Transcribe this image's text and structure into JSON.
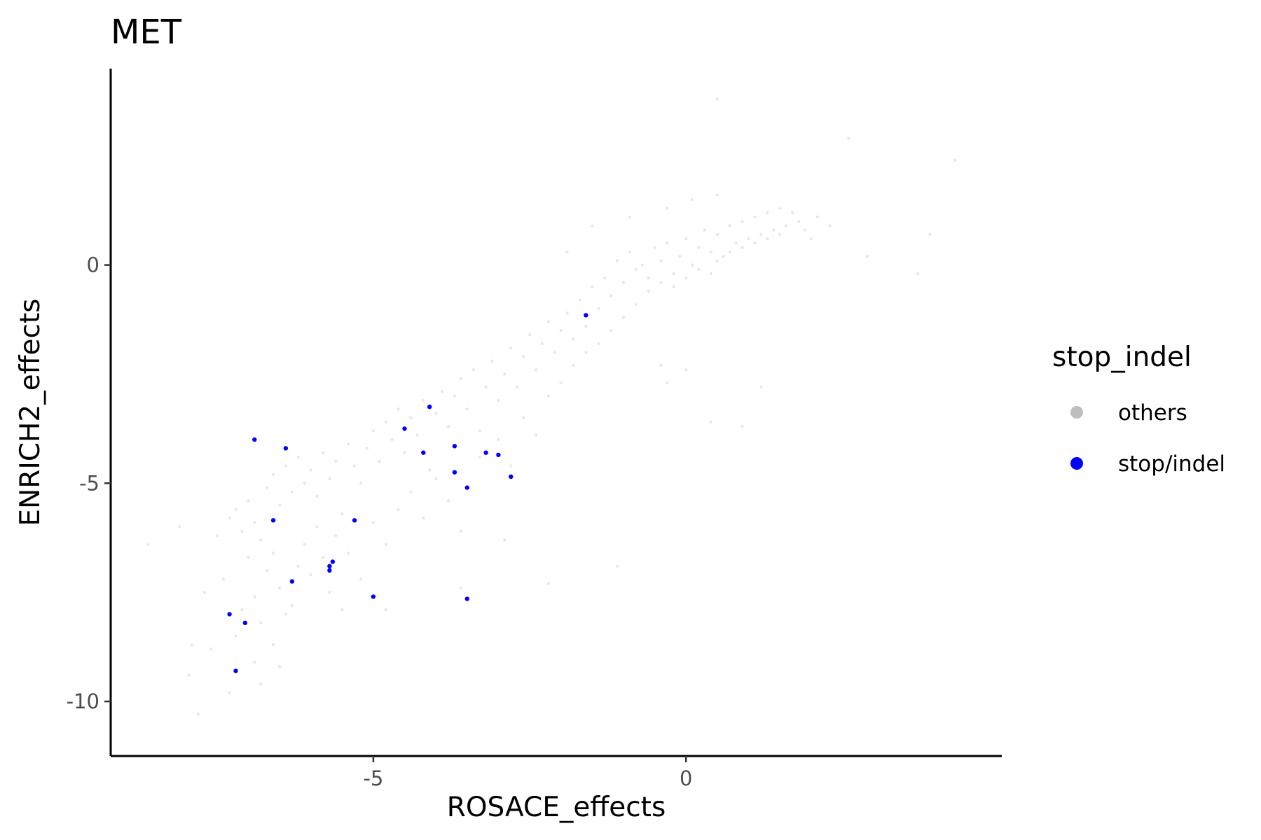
{
  "chart_data": {
    "type": "scatter",
    "title": "MET",
    "xlabel": "ROSACE_effects",
    "ylabel": "ENRICH2_effects",
    "xlim": [
      -9.2,
      5.05
    ],
    "ylim": [
      -11.25,
      4.5
    ],
    "x_ticks": [
      {
        "value": -5,
        "label": "-5"
      },
      {
        "value": 0,
        "label": "0"
      }
    ],
    "y_ticks": [
      {
        "value": 0,
        "label": "0"
      },
      {
        "value": -5,
        "label": "-5"
      },
      {
        "value": -10,
        "label": "-10"
      }
    ],
    "grid": false,
    "legend": {
      "title": "stop_indel",
      "position": "right",
      "entries": [
        {
          "label": "others",
          "color": "#bebebe"
        },
        {
          "label": "stop/indel",
          "color": "#0000ff"
        }
      ]
    },
    "series": [
      {
        "name": "others",
        "color": "#bebebe",
        "opacity": 0.35,
        "points": [
          [
            -8.6,
            -6.4
          ],
          [
            -8.1,
            -6.0
          ],
          [
            -7.95,
            -9.4
          ],
          [
            -7.8,
            -10.3
          ],
          [
            -7.7,
            -7.5
          ],
          [
            -7.6,
            -8.8
          ],
          [
            -7.5,
            -6.2
          ],
          [
            -7.4,
            -7.2
          ],
          [
            -7.3,
            -9.8
          ],
          [
            -7.2,
            -8.5
          ],
          [
            -7.1,
            -7.9
          ],
          [
            -7.0,
            -6.7
          ],
          [
            -7.3,
            -5.8
          ],
          [
            -7.2,
            -5.6
          ],
          [
            -7.1,
            -6.1
          ],
          [
            -7.0,
            -5.4
          ],
          [
            -6.9,
            -5.9
          ],
          [
            -6.8,
            -6.3
          ],
          [
            -6.9,
            -7.6
          ],
          [
            -6.8,
            -8.2
          ],
          [
            -6.7,
            -7.0
          ],
          [
            -6.6,
            -6.6
          ],
          [
            -6.5,
            -7.4
          ],
          [
            -6.4,
            -8.0
          ],
          [
            -6.9,
            -9.1
          ],
          [
            -6.8,
            -9.6
          ],
          [
            -6.6,
            -8.7
          ],
          [
            -6.5,
            -9.2
          ],
          [
            -6.3,
            -7.8
          ],
          [
            -6.2,
            -6.9
          ],
          [
            -6.7,
            -5.1
          ],
          [
            -6.6,
            -4.8
          ],
          [
            -6.5,
            -5.5
          ],
          [
            -6.4,
            -4.6
          ],
          [
            -6.3,
            -5.2
          ],
          [
            -6.2,
            -4.4
          ],
          [
            -6.1,
            -5.0
          ],
          [
            -6.0,
            -4.7
          ],
          [
            -5.9,
            -5.3
          ],
          [
            -5.8,
            -4.3
          ],
          [
            -5.7,
            -4.9
          ],
          [
            -5.6,
            -4.5
          ],
          [
            -6.1,
            -6.4
          ],
          [
            -6.0,
            -7.1
          ],
          [
            -5.9,
            -6.0
          ],
          [
            -5.8,
            -6.7
          ],
          [
            -5.7,
            -7.5
          ],
          [
            -5.6,
            -6.2
          ],
          [
            -5.5,
            -5.7
          ],
          [
            -5.4,
            -4.1
          ],
          [
            -5.3,
            -4.6
          ],
          [
            -5.2,
            -5.0
          ],
          [
            -5.1,
            -4.2
          ],
          [
            -5.0,
            -3.8
          ],
          [
            -4.9,
            -4.5
          ],
          [
            -4.8,
            -3.6
          ],
          [
            -4.7,
            -4.0
          ],
          [
            -4.6,
            -3.3
          ],
          [
            -4.5,
            -4.3
          ],
          [
            -4.4,
            -3.5
          ],
          [
            -5.5,
            -7.9
          ],
          [
            -5.4,
            -6.6
          ],
          [
            -5.2,
            -7.2
          ],
          [
            -5.0,
            -5.9
          ],
          [
            -4.8,
            -6.4
          ],
          [
            -4.6,
            -5.6
          ],
          [
            -4.3,
            -3.9
          ],
          [
            -4.2,
            -3.1
          ],
          [
            -4.1,
            -4.7
          ],
          [
            -4.0,
            -3.4
          ],
          [
            -3.9,
            -2.9
          ],
          [
            -3.8,
            -3.7
          ],
          [
            -3.7,
            -3.0
          ],
          [
            -3.6,
            -2.6
          ],
          [
            -3.5,
            -3.3
          ],
          [
            -3.4,
            -2.4
          ],
          [
            -3.3,
            -3.8
          ],
          [
            -3.2,
            -2.8
          ],
          [
            -4.4,
            -5.2
          ],
          [
            -4.2,
            -5.8
          ],
          [
            -4.0,
            -4.9
          ],
          [
            -3.8,
            -5.4
          ],
          [
            -3.6,
            -6.1
          ],
          [
            -3.3,
            -4.4
          ],
          [
            -3.1,
            -2.2
          ],
          [
            -3.0,
            -3.1
          ],
          [
            -2.9,
            -2.5
          ],
          [
            -2.8,
            -1.9
          ],
          [
            -2.7,
            -2.8
          ],
          [
            -2.6,
            -2.1
          ],
          [
            -2.5,
            -1.6
          ],
          [
            -2.4,
            -2.4
          ],
          [
            -2.3,
            -1.8
          ],
          [
            -2.2,
            -1.3
          ],
          [
            -2.1,
            -2.0
          ],
          [
            -2.0,
            -1.5
          ],
          [
            -3.0,
            -4.0
          ],
          [
            -2.8,
            -4.6
          ],
          [
            -2.6,
            -3.5
          ],
          [
            -2.4,
            -3.9
          ],
          [
            -2.2,
            -3.0
          ],
          [
            -2.0,
            -2.7
          ],
          [
            -1.9,
            -1.1
          ],
          [
            -1.8,
            -1.7
          ],
          [
            -1.7,
            -0.8
          ],
          [
            -1.6,
            -1.4
          ],
          [
            -1.5,
            -0.5
          ],
          [
            -1.4,
            -1.0
          ],
          [
            -1.3,
            -0.3
          ],
          [
            -1.2,
            -0.7
          ],
          [
            -1.1,
            0.1
          ],
          [
            -1.0,
            -0.4
          ],
          [
            -0.9,
            0.3
          ],
          [
            -0.8,
            -0.1
          ],
          [
            -1.8,
            -2.3
          ],
          [
            -1.6,
            -2.0
          ],
          [
            -1.4,
            -1.8
          ],
          [
            -1.2,
            -1.5
          ],
          [
            -1.0,
            -1.2
          ],
          [
            -0.8,
            -0.9
          ],
          [
            -0.7,
            0.0
          ],
          [
            -0.6,
            -0.3
          ],
          [
            -0.5,
            0.4
          ],
          [
            -0.4,
            0.1
          ],
          [
            -0.3,
            0.5
          ],
          [
            -0.2,
            -0.2
          ],
          [
            -0.1,
            0.2
          ],
          [
            0.0,
            0.6
          ],
          [
            0.1,
            0.0
          ],
          [
            0.2,
            0.4
          ],
          [
            0.3,
            0.8
          ],
          [
            0.4,
            0.3
          ],
          [
            -0.6,
            -0.6
          ],
          [
            -0.4,
            -0.4
          ],
          [
            -0.2,
            -0.5
          ],
          [
            0.0,
            -0.3
          ],
          [
            0.2,
            -0.1
          ],
          [
            0.4,
            -0.2
          ],
          [
            0.5,
            0.7
          ],
          [
            0.6,
            0.2
          ],
          [
            0.7,
            0.9
          ],
          [
            0.8,
            0.5
          ],
          [
            0.9,
            1.0
          ],
          [
            1.0,
            0.6
          ],
          [
            1.1,
            1.1
          ],
          [
            1.2,
            0.7
          ],
          [
            1.3,
            1.2
          ],
          [
            1.4,
            0.8
          ],
          [
            1.5,
            1.3
          ],
          [
            1.6,
            0.9
          ],
          [
            0.5,
            0.1
          ],
          [
            0.7,
            0.3
          ],
          [
            0.9,
            0.4
          ],
          [
            1.1,
            0.5
          ],
          [
            1.3,
            0.6
          ],
          [
            1.5,
            0.7
          ],
          [
            1.7,
            1.2
          ],
          [
            1.8,
            1.0
          ],
          [
            1.9,
            0.8
          ],
          [
            2.0,
            0.6
          ],
          [
            2.1,
            1.1
          ],
          [
            2.3,
            0.9
          ],
          [
            -0.3,
            1.3
          ],
          [
            0.1,
            1.5
          ],
          [
            0.5,
            1.6
          ],
          [
            -0.9,
            1.1
          ],
          [
            -1.5,
            0.9
          ],
          [
            -1.9,
            0.3
          ],
          [
            0.5,
            3.8
          ],
          [
            2.6,
            2.9
          ],
          [
            4.3,
            2.4
          ],
          [
            3.9,
            0.7
          ],
          [
            3.7,
            -0.2
          ],
          [
            2.9,
            0.2
          ],
          [
            1.2,
            -2.8
          ],
          [
            0.9,
            -3.7
          ],
          [
            0.4,
            -3.6
          ],
          [
            0.0,
            -2.4
          ],
          [
            -0.4,
            -2.3
          ],
          [
            -0.3,
            -2.7
          ],
          [
            -1.1,
            -6.9
          ],
          [
            -2.2,
            -7.3
          ],
          [
            -2.9,
            -6.3
          ],
          [
            -3.6,
            -7.4
          ],
          [
            -4.8,
            -7.9
          ],
          [
            -7.9,
            -8.7
          ]
        ]
      },
      {
        "name": "stop/indel",
        "color": "#0000ff",
        "opacity": 1,
        "points": [
          [
            -1.6,
            -1.15
          ],
          [
            -4.1,
            -3.25
          ],
          [
            -4.5,
            -3.75
          ],
          [
            -3.7,
            -4.15
          ],
          [
            -4.2,
            -4.3
          ],
          [
            -3.2,
            -4.3
          ],
          [
            -3.0,
            -4.35
          ],
          [
            -3.7,
            -4.75
          ],
          [
            -2.8,
            -4.85
          ],
          [
            -3.5,
            -5.1
          ],
          [
            -6.9,
            -4.0
          ],
          [
            -6.4,
            -4.2
          ],
          [
            -6.6,
            -5.85
          ],
          [
            -5.3,
            -5.85
          ],
          [
            -5.65,
            -6.8
          ],
          [
            -5.7,
            -6.9
          ],
          [
            -5.7,
            -7.0
          ],
          [
            -6.3,
            -7.25
          ],
          [
            -5.0,
            -7.6
          ],
          [
            -3.5,
            -7.65
          ],
          [
            -7.3,
            -8.0
          ],
          [
            -7.05,
            -8.2
          ],
          [
            -7.2,
            -9.3
          ]
        ]
      }
    ]
  }
}
